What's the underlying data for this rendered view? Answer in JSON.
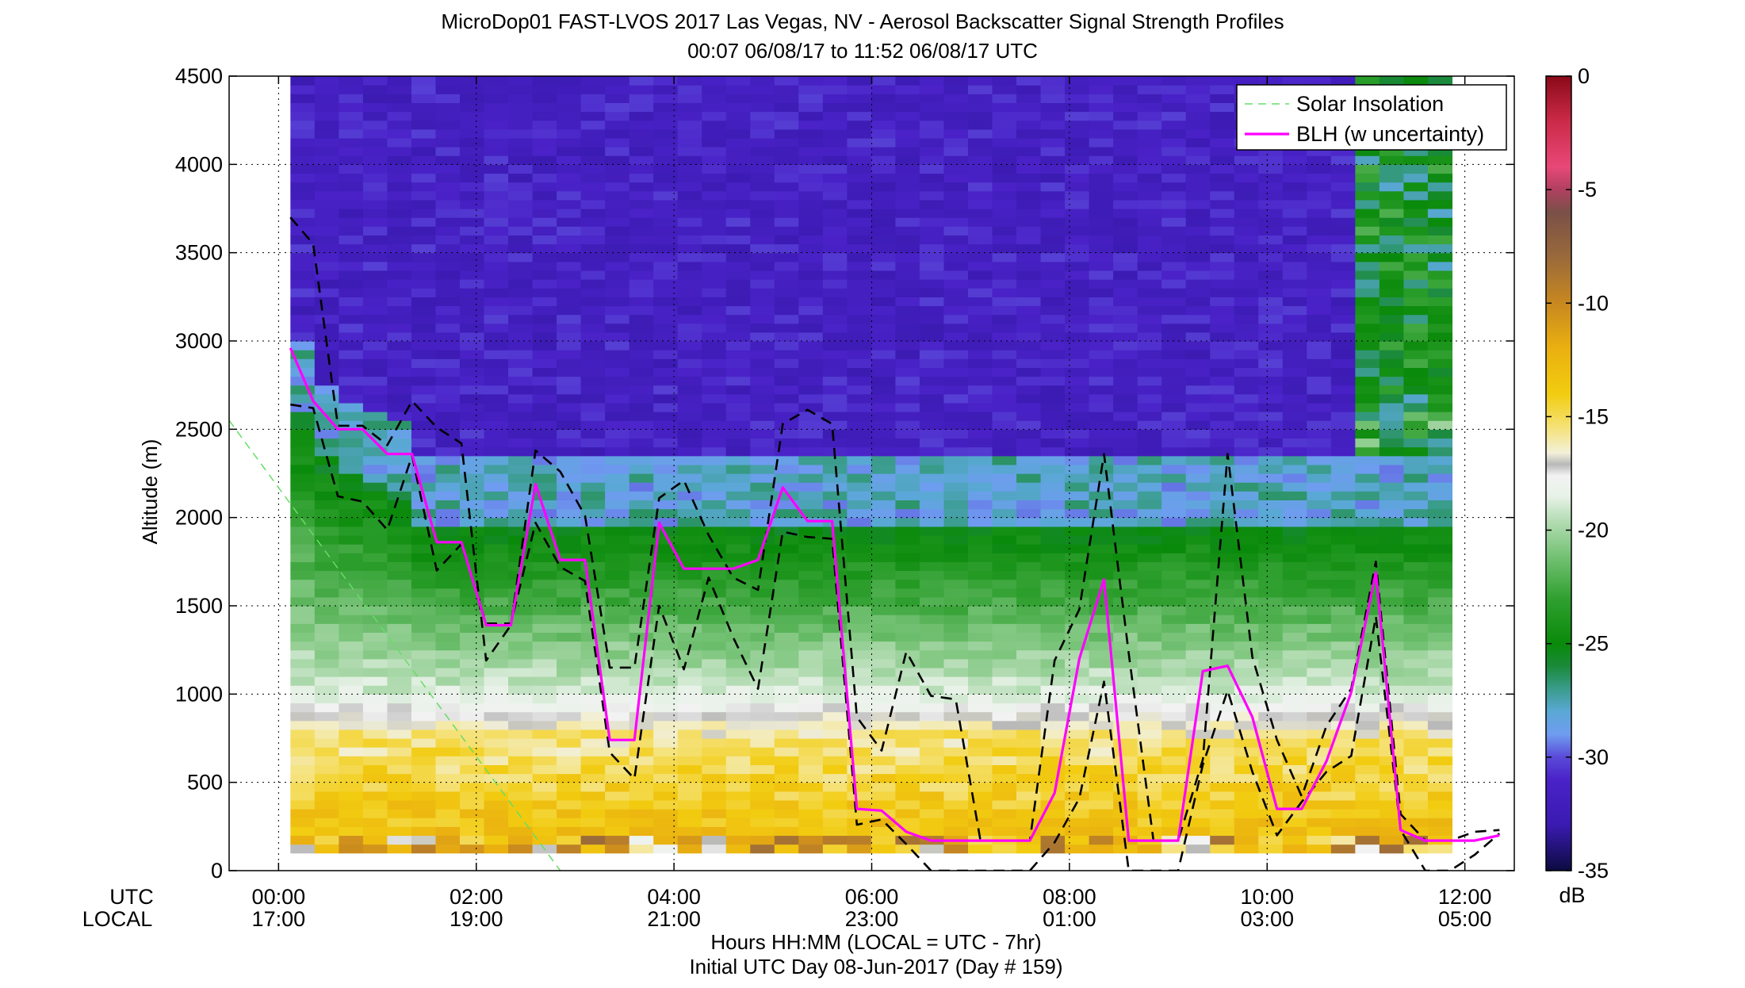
{
  "colors": {
    "background": "#ffffff",
    "blh": "#ff00ff",
    "uncertainty": "#000000",
    "solar": "#66dd66",
    "colorbar_stops": [
      [
        -35,
        "#0b0b40"
      ],
      [
        -33,
        "#3a1ab0"
      ],
      [
        -31,
        "#4a22c8"
      ],
      [
        -30,
        "#5a4ad8"
      ],
      [
        -29,
        "#6f9cf0"
      ],
      [
        -28,
        "#5aa8d6"
      ],
      [
        -27,
        "#3a9c8c"
      ],
      [
        -26,
        "#1a8a3a"
      ],
      [
        -25,
        "#0a8a0a"
      ],
      [
        -23,
        "#30a030"
      ],
      [
        -21,
        "#7ac47a"
      ],
      [
        -19.5,
        "#b8deb8"
      ],
      [
        -18.5,
        "#e8f2e8"
      ],
      [
        -17.6,
        "#f2f2f2"
      ],
      [
        -17.1,
        "#b8b8b8"
      ],
      [
        -16.6,
        "#f2f0d8"
      ],
      [
        -15.5,
        "#f5e27a"
      ],
      [
        -14,
        "#f2cc10"
      ],
      [
        -12,
        "#eab010"
      ],
      [
        -10,
        "#c88820"
      ],
      [
        -8,
        "#9a6a3a"
      ],
      [
        -6,
        "#7a5048"
      ],
      [
        -5,
        "#b04060"
      ],
      [
        -4,
        "#e84878"
      ],
      [
        -2,
        "#cc2a48"
      ],
      [
        0,
        "#8a0a18"
      ]
    ]
  },
  "header": {
    "title": "MicroDop01 FAST-LVOS 2017 Las Vegas, NV - Aerosol Backscatter Signal Strength Profiles",
    "subtitle": "00:07 06/08/17 to 11:52 06/08/17  UTC"
  },
  "footer": {
    "xlabel": "Hours HH:MM  (LOCAL = UTC - 7hr)",
    "day_label": "Initial UTC Day 08-Jun-2017 (Day # 159)"
  },
  "axes_labels": {
    "utc_label": "UTC",
    "local_label": "LOCAL"
  },
  "chart_data": {
    "type": "heatmap",
    "title": "MicroDop01 FAST-LVOS 2017 Las Vegas, NV - Aerosol Backscatter Signal Strength Profiles",
    "subtitle": "00:07 06/08/17 to 11:52 06/08/17  UTC",
    "xlabel": "Hours HH:MM  (LOCAL = UTC - 7hr)",
    "ylabel": "Altitude (m)",
    "xlim_hours": [
      -0.5,
      12.5
    ],
    "ylim": [
      0,
      4500
    ],
    "x_ticks": [
      {
        "hour": 0,
        "utc": "00:00",
        "local": "17:00"
      },
      {
        "hour": 2,
        "utc": "02:00",
        "local": "19:00"
      },
      {
        "hour": 4,
        "utc": "04:00",
        "local": "21:00"
      },
      {
        "hour": 6,
        "utc": "06:00",
        "local": "23:00"
      },
      {
        "hour": 8,
        "utc": "08:00",
        "local": "01:00"
      },
      {
        "hour": 10,
        "utc": "10:00",
        "local": "03:00"
      },
      {
        "hour": 12,
        "utc": "12:00",
        "local": "05:00"
      }
    ],
    "y_ticks": [
      0,
      500,
      1000,
      1500,
      2000,
      2500,
      3000,
      3500,
      4000,
      4500
    ],
    "grid": true,
    "data_range_hours": [
      0.12,
      11.87
    ],
    "data_range_altitude": [
      100,
      4500
    ],
    "colorbar": {
      "label": "dB",
      "range": [
        -35,
        0
      ],
      "ticks": [
        0,
        -5,
        -10,
        -15,
        -20,
        -25,
        -30,
        -35
      ]
    },
    "legend": {
      "position": "top-right",
      "entries": [
        "Solar Insolation",
        "BLH (w uncertainty)"
      ]
    },
    "series": [
      {
        "name": "BLH (w uncertainty)",
        "x": [
          0.12,
          0.35,
          0.6,
          0.85,
          1.1,
          1.35,
          1.6,
          1.85,
          2.1,
          2.35,
          2.6,
          2.85,
          3.1,
          3.35,
          3.6,
          3.85,
          4.1,
          4.35,
          4.6,
          4.85,
          5.1,
          5.35,
          5.6,
          5.85,
          6.1,
          6.35,
          6.6,
          6.85,
          7.1,
          7.35,
          7.6,
          7.85,
          8.1,
          8.35,
          8.6,
          8.85,
          9.1,
          9.35,
          9.6,
          9.85,
          10.1,
          10.35,
          10.6,
          10.85,
          11.1,
          11.35,
          11.6,
          11.85,
          12.1,
          12.35
        ],
        "values": [
          2960,
          2660,
          2500,
          2500,
          2360,
          2360,
          1860,
          1860,
          1390,
          1390,
          2190,
          1760,
          1760,
          740,
          740,
          1970,
          1710,
          1710,
          1710,
          1760,
          2170,
          1980,
          1980,
          350,
          340,
          220,
          170,
          170,
          170,
          170,
          170,
          440,
          1200,
          1650,
          170,
          170,
          170,
          1130,
          1160,
          870,
          350,
          350,
          620,
          1010,
          1690,
          230,
          170,
          170,
          170,
          200
        ]
      },
      {
        "name": "BLH upper bound",
        "x": [
          0.12,
          0.35,
          0.6,
          0.85,
          1.1,
          1.35,
          1.6,
          1.85,
          2.1,
          2.35,
          2.6,
          2.85,
          3.1,
          3.35,
          3.6,
          3.85,
          4.1,
          4.35,
          4.6,
          4.85,
          5.1,
          5.35,
          5.6,
          5.85,
          6.1,
          6.35,
          6.6,
          6.85,
          7.1,
          7.35,
          7.6,
          7.85,
          8.1,
          8.35,
          8.6,
          8.85,
          9.1,
          9.35,
          9.6,
          9.85,
          10.1,
          10.35,
          10.6,
          10.85,
          11.1,
          11.35,
          11.6,
          11.85,
          12.1,
          12.35
        ],
        "values": [
          3700,
          3550,
          2520,
          2520,
          2410,
          2660,
          2510,
          2420,
          1190,
          1390,
          2380,
          2260,
          2010,
          1150,
          1150,
          2110,
          2210,
          1900,
          1660,
          1590,
          2530,
          2610,
          2530,
          870,
          680,
          1240,
          990,
          970,
          170,
          170,
          170,
          1190,
          1480,
          2360,
          1230,
          170,
          170,
          630,
          2360,
          1210,
          740,
          420,
          820,
          1030,
          1750,
          320,
          170,
          170,
          220,
          230
        ]
      },
      {
        "name": "BLH lower bound",
        "x": [
          0.12,
          0.35,
          0.6,
          0.85,
          1.1,
          1.35,
          1.6,
          1.85,
          2.1,
          2.35,
          2.6,
          2.85,
          3.1,
          3.35,
          3.6,
          3.85,
          4.1,
          4.35,
          4.6,
          4.85,
          5.1,
          5.35,
          5.6,
          5.85,
          6.1,
          6.35,
          6.6,
          6.85,
          7.1,
          7.35,
          7.6,
          7.85,
          8.1,
          8.35,
          8.6,
          8.85,
          9.1,
          9.35,
          9.6,
          9.85,
          10.1,
          10.35,
          10.6,
          10.85,
          11.1,
          11.35,
          11.6,
          11.85,
          12.1,
          12.35
        ],
        "values": [
          2640,
          2620,
          2120,
          2090,
          1930,
          2350,
          1700,
          1850,
          1400,
          1400,
          1970,
          1720,
          1640,
          670,
          520,
          1500,
          1140,
          1660,
          1320,
          1030,
          1920,
          1890,
          1880,
          260,
          290,
          150,
          0,
          0,
          0,
          0,
          0,
          160,
          410,
          1070,
          0,
          0,
          0,
          600,
          1020,
          560,
          200,
          390,
          560,
          650,
          1440,
          230,
          0,
          0,
          90,
          210
        ]
      },
      {
        "name": "Solar Insolation",
        "x": [
          -0.5,
          2.85
        ],
        "values": [
          2550,
          0
        ]
      }
    ]
  }
}
